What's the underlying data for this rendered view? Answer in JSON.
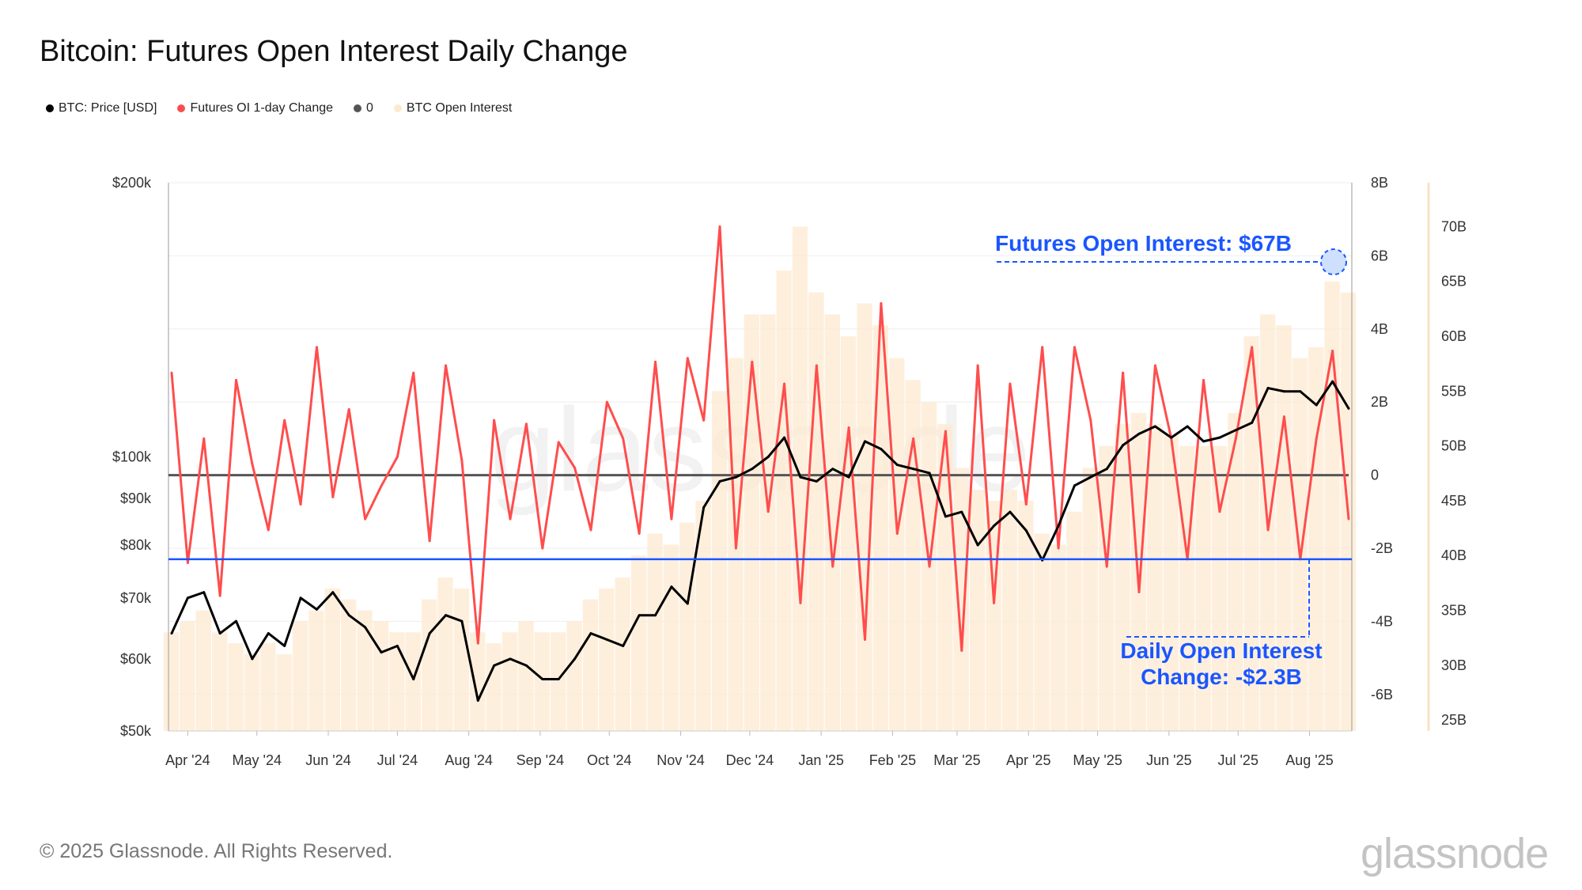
{
  "title": "Bitcoin: Futures Open Interest Daily Change",
  "legend": [
    {
      "label": "BTC: Price [USD]",
      "color": "#000000"
    },
    {
      "label": "Futures OI 1-day Change",
      "color": "#ff4d4d"
    },
    {
      "label": "0",
      "color": "#555555"
    },
    {
      "label": "BTC Open Interest",
      "color": "#fde9d2"
    }
  ],
  "footer": "© 2025 Glassnode. All Rights Reserved.",
  "logo": "glassnode",
  "watermark": "glassnode",
  "chart_data": {
    "type": "line",
    "title": "Bitcoin: Futures Open Interest Daily Change",
    "x_ticks": [
      "Apr '24",
      "May '24",
      "Jun '24",
      "Jul '24",
      "Aug '24",
      "Sep '24",
      "Oct '24",
      "Nov '24",
      "Dec '24",
      "Jan '25",
      "Feb '25",
      "Mar '25",
      "Apr '25",
      "May '25",
      "Jun '25",
      "Jul '25",
      "Aug '25"
    ],
    "x_tick_dates": [
      "2024-04-01",
      "2024-05-01",
      "2024-06-01",
      "2024-07-01",
      "2024-08-01",
      "2024-09-01",
      "2024-10-01",
      "2024-11-01",
      "2024-12-01",
      "2025-01-01",
      "2025-02-01",
      "2025-03-01",
      "2025-04-01",
      "2025-05-01",
      "2025-06-01",
      "2025-07-01",
      "2025-08-01"
    ],
    "x": [
      "2024-03-25",
      "2024-04-01",
      "2024-04-08",
      "2024-04-15",
      "2024-04-22",
      "2024-04-29",
      "2024-05-06",
      "2024-05-13",
      "2024-05-20",
      "2024-05-27",
      "2024-06-03",
      "2024-06-10",
      "2024-06-17",
      "2024-06-24",
      "2024-07-01",
      "2024-07-08",
      "2024-07-15",
      "2024-07-22",
      "2024-07-29",
      "2024-08-05",
      "2024-08-12",
      "2024-08-19",
      "2024-08-26",
      "2024-09-02",
      "2024-09-09",
      "2024-09-16",
      "2024-09-23",
      "2024-09-30",
      "2024-10-07",
      "2024-10-14",
      "2024-10-21",
      "2024-10-28",
      "2024-11-04",
      "2024-11-11",
      "2024-11-18",
      "2024-11-25",
      "2024-12-02",
      "2024-12-09",
      "2024-12-16",
      "2024-12-23",
      "2024-12-30",
      "2025-01-06",
      "2025-01-13",
      "2025-01-20",
      "2025-01-27",
      "2025-02-03",
      "2025-02-10",
      "2025-02-17",
      "2025-02-24",
      "2025-03-03",
      "2025-03-10",
      "2025-03-17",
      "2025-03-24",
      "2025-03-31",
      "2025-04-07",
      "2025-04-14",
      "2025-04-21",
      "2025-04-28",
      "2025-05-05",
      "2025-05-12",
      "2025-05-19",
      "2025-05-26",
      "2025-06-02",
      "2025-06-09",
      "2025-06-16",
      "2025-06-23",
      "2025-06-30",
      "2025-07-07",
      "2025-07-14",
      "2025-07-21",
      "2025-07-28",
      "2025-08-04",
      "2025-08-11",
      "2025-08-18"
    ],
    "series": [
      {
        "name": "BTC: Price [USD]",
        "axis": "left",
        "unit": "USD",
        "color": "#000000",
        "values": [
          64000,
          70000,
          71000,
          64000,
          66000,
          60000,
          64000,
          62000,
          70000,
          68000,
          71000,
          67000,
          65000,
          61000,
          62000,
          57000,
          64000,
          67000,
          66000,
          54000,
          59000,
          60000,
          59000,
          57000,
          57000,
          60000,
          64000,
          63000,
          62000,
          67000,
          67000,
          72000,
          69000,
          88000,
          94000,
          95000,
          97000,
          100000,
          105000,
          95000,
          94000,
          97000,
          95000,
          104000,
          102000,
          98000,
          97000,
          96000,
          86000,
          87000,
          80000,
          84000,
          87000,
          83000,
          77000,
          84000,
          93000,
          95000,
          97000,
          103000,
          106000,
          108000,
          105000,
          108000,
          104000,
          105000,
          107000,
          109000,
          119000,
          118000,
          118000,
          114000,
          121000,
          113000
        ]
      },
      {
        "name": "Futures OI 1-day Change",
        "axis": "right",
        "unit": "USD billions",
        "color": "#ff4d4d",
        "values": [
          2.8,
          -2.4,
          1.0,
          -3.3,
          2.6,
          0.3,
          -1.5,
          1.5,
          -0.8,
          3.5,
          -0.6,
          1.8,
          -1.2,
          -0.3,
          0.5,
          2.8,
          -1.8,
          3.0,
          0.4,
          -4.6,
          1.5,
          -1.2,
          1.4,
          -2.0,
          0.9,
          0.2,
          -1.5,
          2.0,
          1.0,
          -1.6,
          3.1,
          -1.2,
          3.2,
          1.5,
          6.8,
          -2.0,
          3.1,
          -1.0,
          2.5,
          -3.5,
          3.0,
          -2.5,
          1.3,
          -4.5,
          4.7,
          -1.6,
          1.0,
          -2.5,
          1.2,
          -4.8,
          3.0,
          -3.5,
          2.5,
          -0.8,
          3.5,
          -2.0,
          3.5,
          1.5,
          -2.5,
          2.8,
          -3.2,
          3.0,
          1.0,
          -2.3,
          2.6,
          -1.0,
          1.0,
          3.5,
          -1.5,
          1.6,
          -2.3,
          1.0,
          3.4,
          -1.2
        ]
      },
      {
        "name": "0",
        "axis": "right",
        "color": "#555555",
        "constant": 0
      },
      {
        "name": "BTC Open Interest",
        "axis": "far-right",
        "unit": "USD billions",
        "type": "bar",
        "color": "#fde9d2",
        "values": [
          33,
          34,
          35,
          33,
          32,
          31,
          32,
          31,
          34,
          35,
          37,
          36,
          35,
          34,
          33,
          33,
          36,
          38,
          37,
          33,
          32,
          33,
          34,
          33,
          33,
          34,
          36,
          37,
          38,
          40,
          42,
          41,
          43,
          45,
          55,
          58,
          62,
          62,
          66,
          70,
          64,
          62,
          60,
          63,
          61,
          58,
          56,
          54,
          52,
          48,
          46,
          45,
          46,
          45,
          42,
          41,
          44,
          48,
          50,
          52,
          53,
          52,
          51,
          50,
          50,
          50,
          53,
          60,
          62,
          61,
          58,
          59,
          65,
          64
        ]
      }
    ],
    "y_left": {
      "scale": "log",
      "range": [
        50000,
        200000
      ],
      "ticks": [
        50000,
        60000,
        70000,
        80000,
        90000,
        100000,
        200000
      ],
      "tick_labels": [
        "$50k",
        "$60k",
        "$70k",
        "$80k",
        "$90k",
        "$100k",
        "$200k"
      ]
    },
    "y_right": {
      "range": [
        -7,
        8
      ],
      "ticks": [
        -6,
        -4,
        -2,
        0,
        2,
        4,
        6,
        8
      ],
      "tick_labels": [
        "-6B",
        "-4B",
        "-2B",
        "0",
        "2B",
        "4B",
        "6B",
        "8B"
      ]
    },
    "y_far_right": {
      "range": [
        24,
        74
      ],
      "ticks": [
        25,
        30,
        35,
        40,
        45,
        50,
        55,
        60,
        65,
        70
      ],
      "tick_labels": [
        "25B",
        "30B",
        "35B",
        "40B",
        "45B",
        "50B",
        "55B",
        "60B",
        "65B",
        "70B"
      ]
    },
    "grid": true,
    "legend_position": "top-left",
    "reference_line": {
      "value": -2.3,
      "axis": "right",
      "color": "#1a56ff"
    },
    "annotations": [
      {
        "text": "Futures Open Interest: $67B",
        "value": 67,
        "color": "#1a56ff"
      },
      {
        "text_lines": [
          "Daily Open Interest",
          "Change: -$2.3B"
        ],
        "value": -2.3,
        "color": "#1a56ff"
      }
    ],
    "accent_color": "#1a56ff"
  }
}
